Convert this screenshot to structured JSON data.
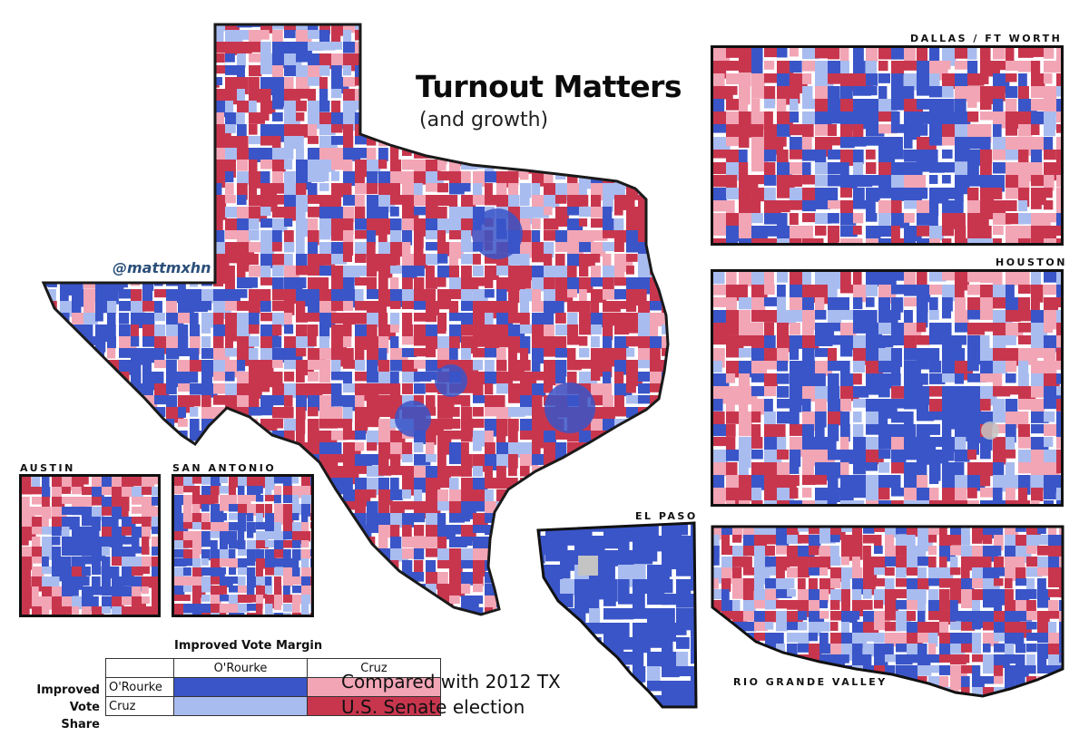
{
  "title": "Turnout Matters",
  "subtitle": "(and growth)",
  "credit": "@mattmxhn",
  "insets": [
    {
      "id": "dallas",
      "label": "DALLAS / FT WORTH"
    },
    {
      "id": "houston",
      "label": "HOUSTON"
    },
    {
      "id": "austin",
      "label": "AUSTIN"
    },
    {
      "id": "san_antonio",
      "label": "SAN ANTONIO"
    },
    {
      "id": "el_paso",
      "label": "EL PASO"
    },
    {
      "id": "rgv",
      "label": "RIO GRANDE VALLEY"
    }
  ],
  "note_lines": [
    "Compared with 2012 TX",
    "U.S. Senate election"
  ],
  "legend": {
    "column_header": "Improved Vote Margin",
    "row_header_line1": "Improved",
    "row_header_line2": "Vote Share",
    "columns": [
      "O'Rourke",
      "Cruz"
    ],
    "rows": [
      "O'Rourke",
      "Cruz"
    ],
    "colors": {
      "orourke_margin_orourke_share": "#3a55c8",
      "cruz_margin_orourke_share": "#f2a5b5",
      "orourke_margin_cruz_share": "#a9bcf0",
      "cruz_margin_cruz_share": "#c8364e"
    }
  },
  "map_colors": {
    "dark_blue": "#3a55c8",
    "light_blue": "#a9bcf0",
    "pink": "#f2a5b5",
    "dark_red": "#c8364e",
    "no_data": "#c4c4c4",
    "border": "#1a1a1a"
  }
}
